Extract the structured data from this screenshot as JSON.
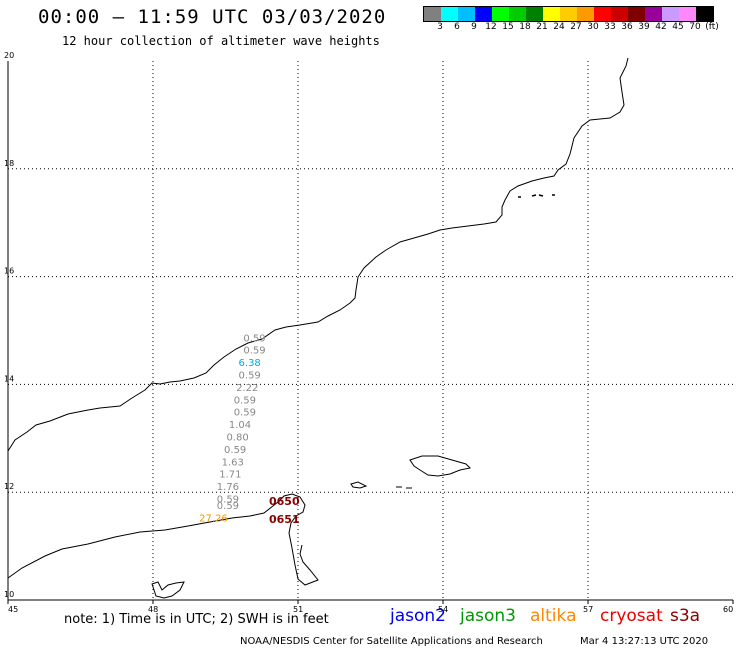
{
  "header": {
    "title": "00:00 – 11:59 UTC 03/03/2020",
    "subtitle": "12 hour collection of altimeter wave heights"
  },
  "colorbar": {
    "colors": [
      "#808080",
      "#00ffff",
      "#00bfff",
      "#0000ff",
      "#00ff00",
      "#00cc00",
      "#008000",
      "#ffff00",
      "#ffcc00",
      "#ff9900",
      "#ff0000",
      "#cc0000",
      "#800000",
      "#990099",
      "#cc99ff",
      "#ff88ff",
      "#000000"
    ],
    "labels": [
      "3",
      "6",
      "9",
      "12",
      "15",
      "18",
      "21",
      "24",
      "27",
      "30",
      "33",
      "36",
      "39",
      "42",
      "45",
      "70",
      "(ft)"
    ]
  },
  "chart_data": {
    "type": "scatter",
    "xlim": [
      45,
      60
    ],
    "ylim": [
      10,
      20
    ],
    "x_ticks": [
      "45",
      "48",
      "51",
      "54",
      "57",
      "60"
    ],
    "y_ticks": [
      "20",
      "18",
      "16",
      "14",
      "12",
      "10"
    ],
    "grid": true,
    "points": [
      {
        "lon": 50.1,
        "lat": 14.8,
        "label": "0.59",
        "color": "#888888"
      },
      {
        "lon": 50.1,
        "lat": 14.57,
        "label": "0.59",
        "color": "#888888"
      },
      {
        "lon": 50.0,
        "lat": 14.34,
        "label": "6.38",
        "color": "#00aaee"
      },
      {
        "lon": 50.0,
        "lat": 14.11,
        "label": "0.59",
        "color": "#888888"
      },
      {
        "lon": 49.95,
        "lat": 13.88,
        "label": "2.22",
        "color": "#888888"
      },
      {
        "lon": 49.9,
        "lat": 13.65,
        "label": "0.59",
        "color": "#888888"
      },
      {
        "lon": 49.9,
        "lat": 13.42,
        "label": "0.59",
        "color": "#888888"
      },
      {
        "lon": 49.8,
        "lat": 13.19,
        "label": "1.04",
        "color": "#888888"
      },
      {
        "lon": 49.75,
        "lat": 12.96,
        "label": "0.80",
        "color": "#888888"
      },
      {
        "lon": 49.7,
        "lat": 12.73,
        "label": "0.59",
        "color": "#888888"
      },
      {
        "lon": 49.65,
        "lat": 12.5,
        "label": "1.63",
        "color": "#888888"
      },
      {
        "lon": 49.6,
        "lat": 12.27,
        "label": "1.71",
        "color": "#888888"
      },
      {
        "lon": 49.55,
        "lat": 12.04,
        "label": "1.76",
        "color": "#888888"
      },
      {
        "lon": 49.55,
        "lat": 11.81,
        "label": "0.59",
        "color": "#888888"
      },
      {
        "lon": 49.55,
        "lat": 11.69,
        "label": "0.59",
        "color": "#888888"
      },
      {
        "lon": 49.25,
        "lat": 11.46,
        "label": "27.26",
        "color": "#ee9900"
      }
    ],
    "annotations": [
      {
        "lon": 50.4,
        "lat": 11.76,
        "label": "0650",
        "color": "#880000"
      },
      {
        "lon": 50.4,
        "lat": 11.43,
        "label": "0651",
        "color": "#880000"
      }
    ]
  },
  "footer": {
    "note": "note:  1) Time is in UTC;  2) SWH is in feet",
    "legend": [
      {
        "name": "jason2",
        "color": "#0000ee"
      },
      {
        "name": "jason3",
        "color": "#009900"
      },
      {
        "name": "altika",
        "color": "#ff8800"
      },
      {
        "name": "cryosat",
        "color": "#ee0000"
      },
      {
        "name": "s3a",
        "color": "#880000"
      }
    ],
    "credit": "NOAA/NESDIS Center for Satellite Applications and Research",
    "date": "Mar  4 13:27:13 UTC 2020"
  }
}
